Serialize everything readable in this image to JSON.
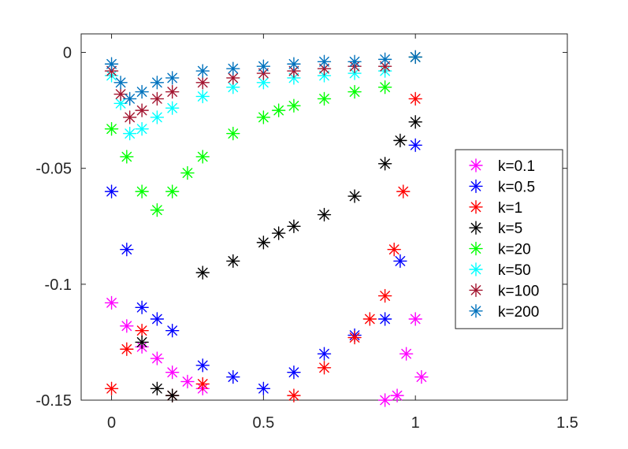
{
  "chart_data": {
    "type": "scatter",
    "title": "",
    "xlabel": "",
    "ylabel": "",
    "xlim": [
      -0.1,
      1.5
    ],
    "ylim": [
      -0.15,
      0.008
    ],
    "xticks": [
      0,
      0.5,
      1,
      1.5
    ],
    "xtick_labels": [
      "0",
      "0.5",
      "1",
      "1.5"
    ],
    "yticks": [
      0,
      -0.05,
      -0.1,
      -0.15
    ],
    "ytick_labels": [
      "0",
      "-0.05",
      "-0.1",
      "-0.15"
    ],
    "grid": false,
    "legend_position": "right",
    "marker": "asterisk",
    "series": [
      {
        "name": "k=0.1",
        "color": "#ff00ff",
        "x": [
          0.0,
          0.05,
          0.1,
          0.15,
          0.2,
          0.25,
          0.3,
          0.9,
          0.94,
          0.97,
          1.0,
          1.02
        ],
        "y": [
          -0.108,
          -0.118,
          -0.127,
          -0.132,
          -0.138,
          -0.142,
          -0.145,
          -0.15,
          -0.148,
          -0.13,
          -0.115,
          -0.14
        ]
      },
      {
        "name": "k=0.5",
        "color": "#0000ff",
        "x": [
          0.0,
          0.05,
          0.1,
          0.15,
          0.2,
          0.3,
          0.4,
          0.5,
          0.6,
          0.7,
          0.8,
          0.9,
          0.95,
          1.0
        ],
        "y": [
          -0.06,
          -0.085,
          -0.11,
          -0.115,
          -0.12,
          -0.135,
          -0.14,
          -0.145,
          -0.138,
          -0.13,
          -0.122,
          -0.115,
          -0.09,
          -0.04
        ]
      },
      {
        "name": "k=1",
        "color": "#ff0000",
        "x": [
          0.0,
          0.05,
          0.1,
          0.2,
          0.3,
          0.6,
          0.7,
          0.8,
          0.85,
          0.9,
          0.93,
          0.96,
          1.0
        ],
        "y": [
          -0.145,
          -0.128,
          -0.12,
          -0.148,
          -0.143,
          -0.148,
          -0.136,
          -0.123,
          -0.115,
          -0.105,
          -0.085,
          -0.06,
          -0.02
        ]
      },
      {
        "name": "k=5",
        "color": "#000000",
        "x": [
          0.1,
          0.15,
          0.2,
          0.3,
          0.4,
          0.5,
          0.55,
          0.6,
          0.7,
          0.8,
          0.9,
          0.95,
          1.0
        ],
        "y": [
          -0.125,
          -0.145,
          -0.148,
          -0.095,
          -0.09,
          -0.082,
          -0.078,
          -0.075,
          -0.07,
          -0.062,
          -0.048,
          -0.038,
          -0.03
        ]
      },
      {
        "name": "k=20",
        "color": "#00ff00",
        "x": [
          0.0,
          0.05,
          0.1,
          0.15,
          0.2,
          0.25,
          0.3,
          0.4,
          0.5,
          0.55,
          0.6,
          0.7,
          0.8,
          0.9,
          1.0
        ],
        "y": [
          -0.033,
          -0.045,
          -0.06,
          -0.068,
          -0.06,
          -0.052,
          -0.045,
          -0.035,
          -0.028,
          -0.025,
          -0.023,
          -0.02,
          -0.017,
          -0.015,
          -0.002
        ]
      },
      {
        "name": "k=50",
        "color": "#00ffff",
        "x": [
          0.0,
          0.03,
          0.06,
          0.1,
          0.15,
          0.2,
          0.3,
          0.4,
          0.5,
          0.6,
          0.7,
          0.8,
          0.9,
          1.0
        ],
        "y": [
          -0.01,
          -0.022,
          -0.035,
          -0.033,
          -0.028,
          -0.024,
          -0.019,
          -0.015,
          -0.013,
          -0.011,
          -0.01,
          -0.009,
          -0.008,
          -0.002
        ]
      },
      {
        "name": "k=100",
        "color": "#a2142f",
        "x": [
          0.0,
          0.03,
          0.06,
          0.1,
          0.15,
          0.2,
          0.3,
          0.4,
          0.5,
          0.6,
          0.7,
          0.8,
          0.9,
          1.0
        ],
        "y": [
          -0.008,
          -0.018,
          -0.028,
          -0.025,
          -0.02,
          -0.017,
          -0.013,
          -0.011,
          -0.009,
          -0.008,
          -0.007,
          -0.006,
          -0.006,
          -0.002
        ]
      },
      {
        "name": "k=200",
        "color": "#0072bd",
        "x": [
          0.0,
          0.03,
          0.06,
          0.1,
          0.15,
          0.2,
          0.3,
          0.4,
          0.5,
          0.6,
          0.7,
          0.8,
          0.9,
          1.0
        ],
        "y": [
          -0.005,
          -0.013,
          -0.02,
          -0.017,
          -0.013,
          -0.011,
          -0.008,
          -0.007,
          -0.006,
          -0.005,
          -0.004,
          -0.004,
          -0.003,
          -0.002
        ]
      }
    ]
  }
}
